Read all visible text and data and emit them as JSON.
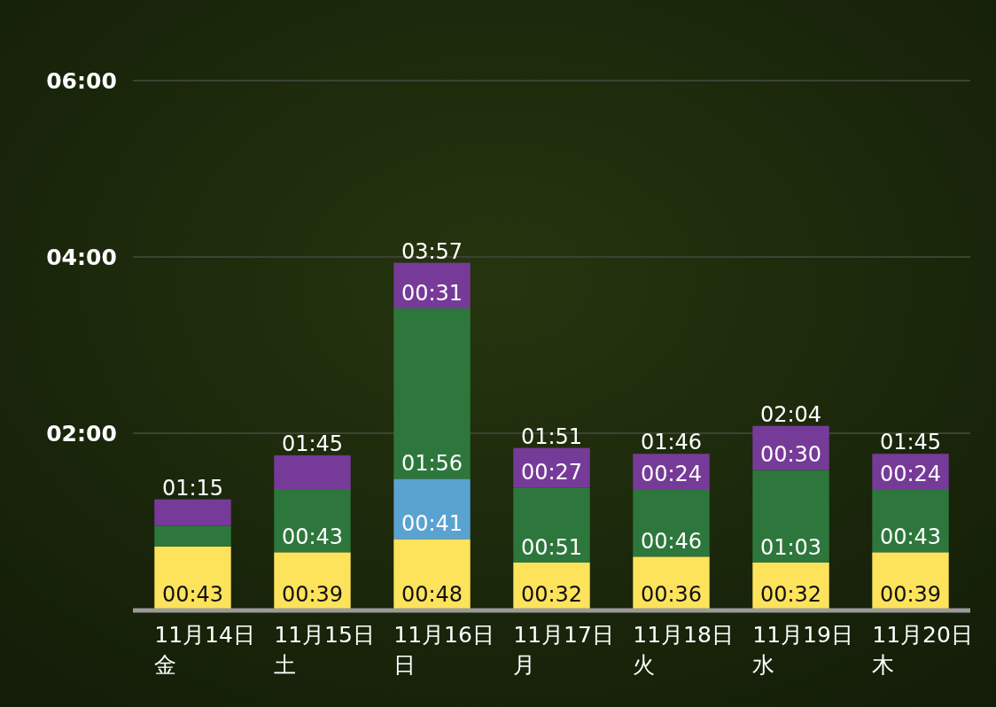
{
  "chart_data": {
    "type": "bar",
    "stacked": true,
    "categories": [
      "11月14日金",
      "11月15日土",
      "11月16日日",
      "11月17日月",
      "11月18日火",
      "11月19日水",
      "11月20日木"
    ],
    "series": [
      {
        "color": "#fde35c",
        "values": [
          43,
          39,
          48,
          32,
          36,
          32,
          39
        ],
        "value_labels": [
          "00:43",
          "00:39",
          "00:48",
          "00:32",
          "00:36",
          "00:32",
          "00:39"
        ]
      },
      {
        "color": "#5aa3d0",
        "values": [
          null,
          null,
          41,
          null,
          null,
          null,
          null
        ],
        "value_labels": [
          null,
          null,
          "00:41",
          null,
          null,
          null,
          null
        ]
      },
      {
        "color": "#2e773c",
        "values": [
          14,
          43,
          116,
          51,
          46,
          63,
          43
        ],
        "value_labels": [
          null,
          "00:43",
          "01:56",
          "00:51",
          "00:46",
          "01:03",
          "00:43"
        ]
      },
      {
        "color": "#763b98",
        "values": [
          18,
          23,
          31,
          27,
          24,
          30,
          24
        ],
        "value_labels": [
          null,
          null,
          "00:31",
          "00:27",
          "00:24",
          "00:30",
          "00:24"
        ]
      }
    ],
    "totals": [
      "01:15",
      "01:45",
      "03:57",
      "01:51",
      "01:46",
      "02:04",
      "01:45"
    ],
    "ylim": [
      0,
      360
    ],
    "yticks": [
      {
        "value": 120,
        "label": "02:00"
      },
      {
        "value": 240,
        "label": "04:00"
      },
      {
        "value": 360,
        "label": "06:00"
      }
    ],
    "grid": "y"
  }
}
